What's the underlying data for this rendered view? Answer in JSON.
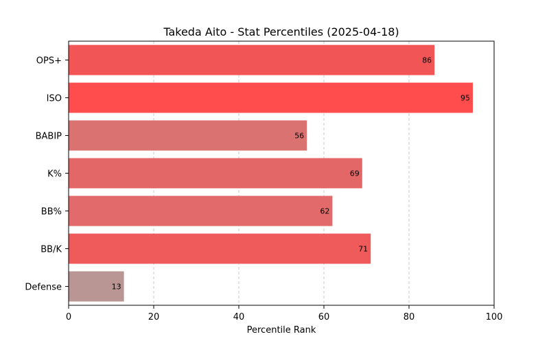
{
  "chart_data": {
    "type": "bar",
    "orientation": "horizontal",
    "title": "Takeda Aito - Stat Percentiles (2025-04-18)",
    "xlabel": "Percentile Rank",
    "ylabel": "",
    "xlim": [
      0,
      100
    ],
    "xticks": [
      0,
      20,
      40,
      60,
      80,
      100
    ],
    "grid": "x-dashed",
    "legend": "none",
    "categories": [
      "OPS+",
      "ISO",
      "BABIP",
      "K%",
      "BB%",
      "BB/K",
      "Defense"
    ],
    "values": [
      86,
      95,
      56,
      69,
      62,
      71,
      13
    ],
    "colors": [
      "#f25555",
      "#ff4d4d",
      "#db7272",
      "#e36767",
      "#e26a6a",
      "#ef5b5b",
      "#b99593"
    ]
  }
}
